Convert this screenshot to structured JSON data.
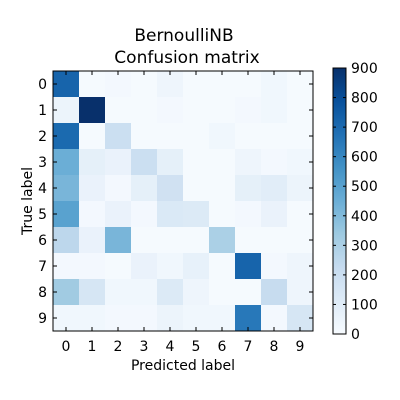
{
  "chart_data": {
    "type": "heatmap",
    "title": [
      "BernoulliNB",
      "Confusion matrix"
    ],
    "xlabel": "Predicted label",
    "ylabel": "True label",
    "x_categories": [
      "0",
      "1",
      "2",
      "3",
      "4",
      "5",
      "6",
      "7",
      "8",
      "9"
    ],
    "y_categories": [
      "0",
      "1",
      "2",
      "3",
      "4",
      "5",
      "6",
      "7",
      "8",
      "9"
    ],
    "matrix": [
      [
        720,
        10,
        20,
        10,
        40,
        10,
        10,
        10,
        30,
        10
      ],
      [
        50,
        900,
        10,
        10,
        20,
        10,
        10,
        20,
        30,
        10
      ],
      [
        700,
        10,
        200,
        10,
        10,
        10,
        30,
        10,
        10,
        10
      ],
      [
        450,
        80,
        60,
        200,
        80,
        10,
        10,
        40,
        20,
        30
      ],
      [
        420,
        60,
        20,
        80,
        180,
        10,
        10,
        80,
        100,
        50
      ],
      [
        500,
        20,
        60,
        20,
        130,
        120,
        10,
        20,
        60,
        10
      ],
      [
        250,
        60,
        420,
        10,
        10,
        10,
        300,
        10,
        10,
        10
      ],
      [
        20,
        20,
        10,
        60,
        30,
        70,
        10,
        720,
        20,
        40
      ],
      [
        330,
        150,
        30,
        30,
        120,
        40,
        10,
        10,
        220,
        40
      ],
      [
        30,
        30,
        20,
        20,
        50,
        30,
        30,
        650,
        20,
        150
      ]
    ],
    "colorbar": {
      "min": 0,
      "max": 900,
      "ticks": [
        "0",
        "100",
        "200",
        "300",
        "400",
        "500",
        "600",
        "700",
        "800",
        "900"
      ]
    },
    "colormap": "Blues"
  }
}
